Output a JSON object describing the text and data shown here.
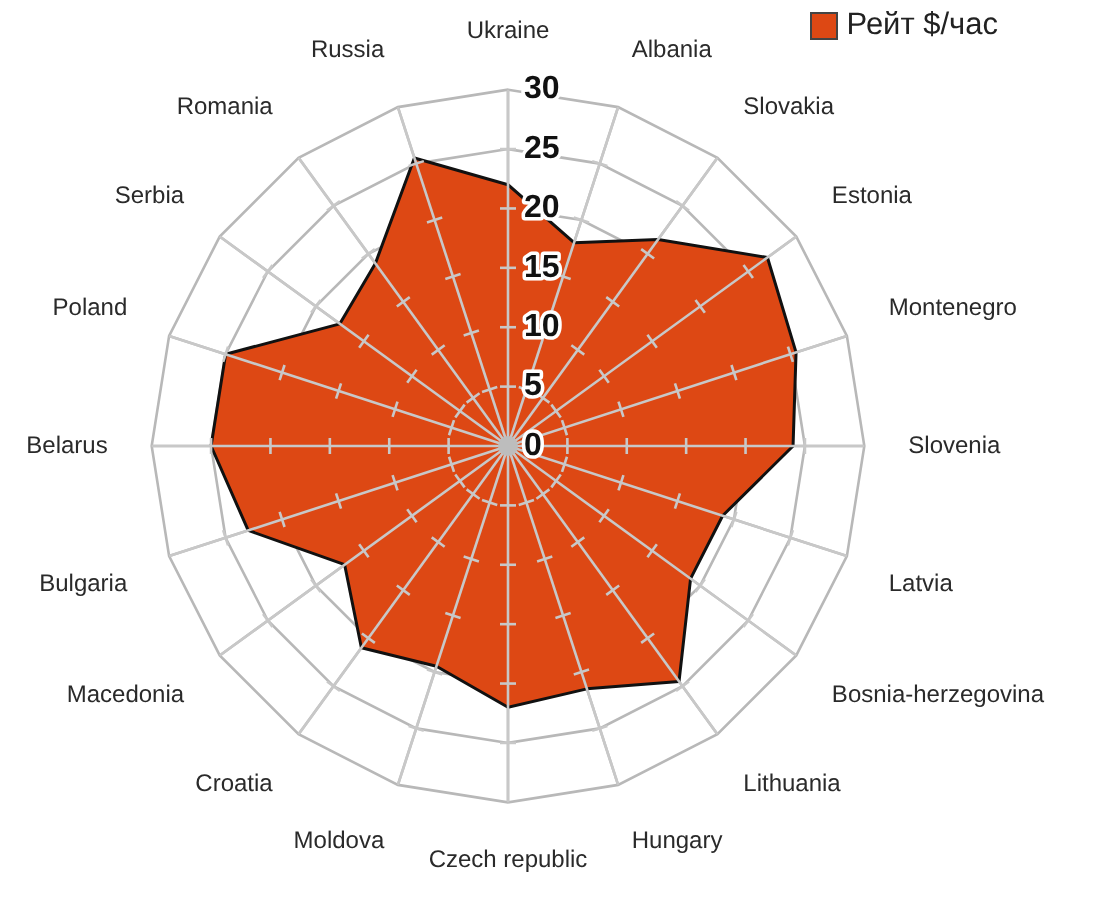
{
  "chart_data": {
    "type": "radar",
    "categories": [
      "Ukraine",
      "Albania",
      "Slovakia",
      "Estonia",
      "Montenegro",
      "Slovenia",
      "Latvia",
      "Bosnia-herzegovina",
      "Lithuania",
      "Hungary",
      "Czech republic",
      "Moldova",
      "Croatia",
      "Macedonia",
      "Bulgaria",
      "Belarus",
      "Poland",
      "Serbia",
      "Romania",
      "Russia"
    ],
    "series": [
      {
        "name": "Рейт $/час",
        "color": "#dd4814",
        "values": [
          22,
          18,
          21.5,
          27,
          25.5,
          24,
          19,
          19,
          24.5,
          21.5,
          22,
          19.5,
          21,
          17,
          23,
          25,
          25,
          17.5,
          19,
          25.5
        ]
      }
    ],
    "ylim": [
      0,
      30
    ],
    "yticks": [
      0,
      5,
      10,
      15,
      20,
      25,
      30
    ],
    "grid": true,
    "legend": "top right",
    "marker": "none"
  }
}
